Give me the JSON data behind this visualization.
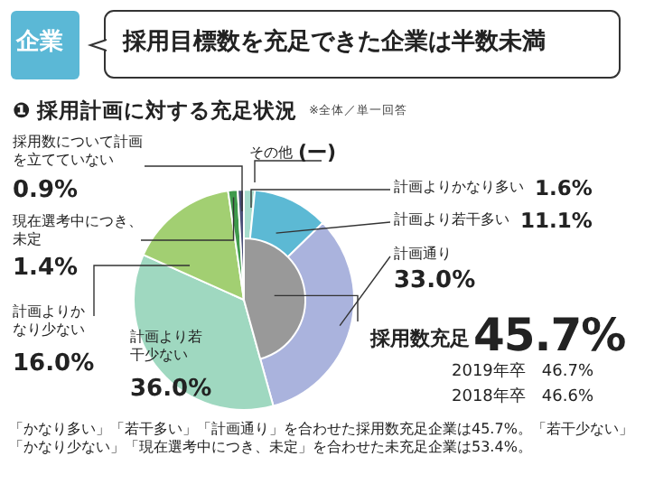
{
  "chart_data": [
    {
      "type": "pie",
      "title": "採用目標数を充足できた企業は半数未満",
      "subtitle": "❶ 採用計画に対する充足状況",
      "categories": [
        "その他",
        "計画よりかなり多い",
        "計画より若干多い",
        "計画通り",
        "計画より若干少ない",
        "計画よりかなり少ない",
        "現在選考中につき、未定",
        "採用数について計画を立てていない"
      ],
      "values": [
        0,
        1.6,
        11.1,
        33.0,
        36.0,
        16.0,
        1.4,
        0.9
      ],
      "value_labels": [
        "(ー)",
        "1.6%",
        "11.1%",
        "33.0%",
        "36.0%",
        "16.0%",
        "1.4%",
        "0.9%"
      ],
      "colors": [
        "#9a9a9a",
        "#a6dccd",
        "#5cb9d4",
        "#aab3dd",
        "#9fd8c0",
        "#a2cf72",
        "#3f9a4c",
        "#4b5078"
      ],
      "annotations": [
        "企業",
        "※全体／単一回答",
        "「かなり多い」「若干多い」「計画通り」を合わせた採用数充足企業は45.7%。「若干少ない」「かなり少ない」「現在選考中につき、未定」を合わせた未充足企業は53.4%。"
      ]
    },
    {
      "type": "pie",
      "categories": [
        "採用数充足"
      ],
      "values": [
        45.7
      ],
      "colors": [
        "#999999"
      ],
      "value_labels": [
        "45.7%"
      ],
      "annotations": [
        "2019年卒　46.7%",
        "2018年卒　46.6%"
      ]
    }
  ]
}
